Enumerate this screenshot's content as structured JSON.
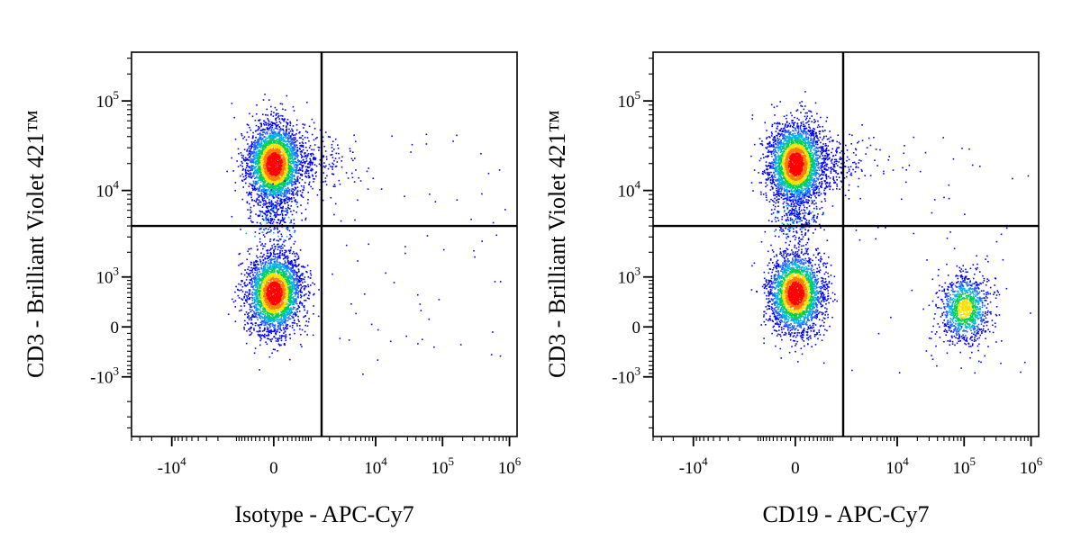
{
  "chart_data": [
    {
      "type": "scatter",
      "xlabel": "Isotype - APC-Cy7",
      "ylabel": "CD3 - Brilliant Violet 421™",
      "x_scale": "biexponential",
      "y_scale": "biexponential",
      "x_ticks": [
        {
          "value": -10000,
          "base": "-10",
          "exp": "4"
        },
        {
          "value": 0,
          "base": "0",
          "exp": ""
        },
        {
          "value": 10000,
          "base": "10",
          "exp": "4"
        },
        {
          "value": 100000,
          "base": "10",
          "exp": "5"
        },
        {
          "value": 1000000,
          "base": "10",
          "exp": "6"
        }
      ],
      "y_ticks": [
        {
          "value": 100000,
          "base": "10",
          "exp": "5"
        },
        {
          "value": 10000,
          "base": "10",
          "exp": "4"
        },
        {
          "value": 1000,
          "base": "10",
          "exp": "3"
        },
        {
          "value": 0,
          "base": "0",
          "exp": ""
        },
        {
          "value": -1000,
          "base": "-10",
          "exp": "3"
        }
      ],
      "quadrant_gate": {
        "x": 1500,
        "y": 4000
      },
      "populations": [
        {
          "center_x": 0,
          "center_y": 20000,
          "events": 3200
        },
        {
          "center_x": 0,
          "center_y": 600,
          "events": 3000
        }
      ],
      "grid": false
    },
    {
      "type": "scatter",
      "xlabel": "CD19 - APC-Cy7",
      "ylabel": "CD3 - Brilliant Violet 421™",
      "x_scale": "biexponential",
      "y_scale": "biexponential",
      "x_ticks": [
        {
          "value": -10000,
          "base": "-10",
          "exp": "4"
        },
        {
          "value": 0,
          "base": "0",
          "exp": ""
        },
        {
          "value": 10000,
          "base": "10",
          "exp": "4"
        },
        {
          "value": 100000,
          "base": "10",
          "exp": "5"
        },
        {
          "value": 1000000,
          "base": "10",
          "exp": "6"
        }
      ],
      "y_ticks": [
        {
          "value": 100000,
          "base": "10",
          "exp": "5"
        },
        {
          "value": 10000,
          "base": "10",
          "exp": "4"
        },
        {
          "value": 1000,
          "base": "10",
          "exp": "3"
        },
        {
          "value": 0,
          "base": "0",
          "exp": ""
        },
        {
          "value": -1000,
          "base": "-10",
          "exp": "3"
        }
      ],
      "quadrant_gate": {
        "x": 1500,
        "y": 4000
      },
      "populations": [
        {
          "center_x": 0,
          "center_y": 20000,
          "events": 3200
        },
        {
          "center_x": 0,
          "center_y": 600,
          "events": 2800
        },
        {
          "center_x": 100000,
          "center_y": 300,
          "events": 1100
        }
      ],
      "grid": false
    }
  ],
  "colors": {
    "density_low": "#0000ff",
    "density_mid_low": "#00b4e6",
    "density_mid": "#00d050",
    "density_mid_high": "#ffe000",
    "density_high": "#ff0000",
    "axis": "#000000",
    "gate": "#000000"
  }
}
